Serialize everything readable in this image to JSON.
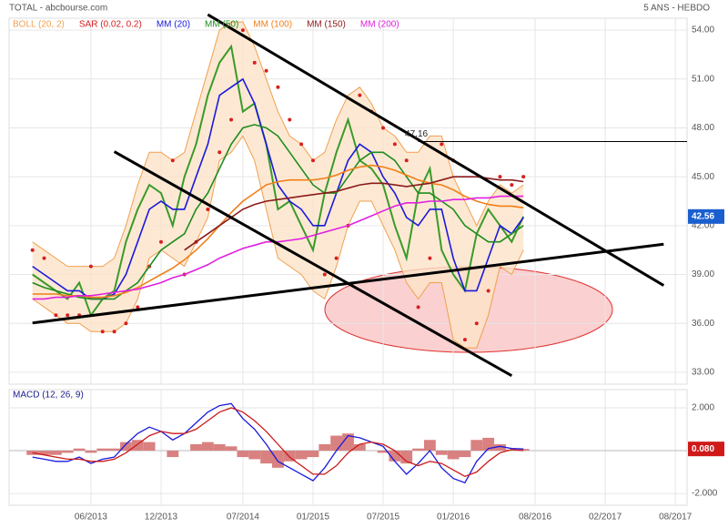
{
  "chart_data": [
    {
      "type": "line",
      "title": "TOTAL - abcbourse.com",
      "subtitle": "5 ANS - HEBDO",
      "x": [
        "2013-01",
        "2013-02",
        "2013-03",
        "2013-04",
        "2013-05",
        "2013-06",
        "2013-07",
        "2013-08",
        "2013-09",
        "2013-10",
        "2013-11",
        "2013-12",
        "2014-01",
        "2014-02",
        "2014-03",
        "2014-04",
        "2014-05",
        "2014-06",
        "2014-07",
        "2014-08",
        "2014-09",
        "2014-10",
        "2014-11",
        "2014-12",
        "2015-01",
        "2015-02",
        "2015-03",
        "2015-04",
        "2015-05",
        "2015-06",
        "2015-07",
        "2015-08",
        "2015-09",
        "2015-10",
        "2015-11",
        "2015-12",
        "2016-01",
        "2016-02",
        "2016-03",
        "2016-04",
        "2016-05",
        "2016-06",
        "2016-07"
      ],
      "close": {
        "color": "#3a9a2a",
        "values": [
          39.0,
          38.5,
          38.0,
          37.5,
          38.5,
          36.5,
          37.5,
          38.0,
          41.0,
          43.0,
          44.5,
          44.0,
          42.0,
          45.0,
          47.0,
          50.0,
          52.0,
          53.0,
          49.0,
          49.5,
          47.0,
          43.0,
          43.5,
          42.0,
          40.5,
          44.0,
          46.5,
          48.5,
          46.0,
          45.5,
          44.5,
          42.0,
          40.0,
          44.0,
          45.5,
          40.5,
          39.0,
          38.0,
          41.5,
          43.0,
          42.0,
          41.0,
          42.56
        ]
      },
      "bollinger": {
        "name": "BOLL (20, 2)",
        "color": "#f0a050",
        "upper": [
          41,
          40.5,
          40,
          39.5,
          39.5,
          39.5,
          39.5,
          40,
          42,
          44.5,
          46.5,
          46.5,
          46,
          46.5,
          49,
          51.5,
          54,
          54.5,
          54.5,
          53,
          51,
          49,
          47.5,
          47,
          46,
          46.5,
          48.5,
          50,
          50.5,
          49.5,
          48,
          47.5,
          46.5,
          46.5,
          47.5,
          47.5,
          45,
          43.5,
          42,
          43.5,
          44.5,
          44,
          44.5
        ],
        "lower": [
          37.5,
          37,
          36.5,
          36,
          36,
          35.5,
          35.5,
          35.5,
          36,
          37.5,
          40,
          40.5,
          40,
          39.5,
          41,
          42.5,
          46,
          46.5,
          47.5,
          46,
          43,
          40,
          39.5,
          39,
          38,
          37.5,
          39.5,
          42,
          43.5,
          43.5,
          42,
          40.5,
          38.5,
          37.5,
          38.5,
          38.5,
          35,
          34.5,
          34.5,
          36.5,
          39.5,
          39,
          40.5
        ]
      },
      "series": [
        {
          "name": "SAR (0.02, 0.2)",
          "color": "#d62020",
          "style": "dots",
          "values": [
            40.5,
            40,
            36.5,
            36.5,
            36.5,
            39.5,
            35.5,
            35.5,
            36,
            37,
            39.5,
            41,
            46,
            39,
            41,
            43,
            46.5,
            48.5,
            54,
            52,
            51.5,
            50.5,
            48.5,
            47,
            46,
            39,
            40,
            42,
            50,
            49,
            48,
            47,
            46,
            37,
            40,
            47,
            46,
            35,
            36,
            38,
            45,
            44.5,
            45
          ]
        },
        {
          "name": "MM (20)",
          "color": "#1a1adc",
          "values": [
            39.5,
            39,
            38.5,
            38,
            38,
            37.5,
            37.5,
            37.8,
            39,
            41,
            43,
            43.5,
            43,
            43,
            45,
            47,
            50,
            50.5,
            51,
            49.5,
            47,
            44.5,
            43.5,
            43,
            42,
            42,
            44,
            46,
            47,
            46.5,
            45,
            44,
            42.5,
            42,
            43,
            43,
            40,
            38,
            38,
            40,
            42,
            41.5,
            42.5
          ]
        },
        {
          "name": "MM (50)",
          "color": "#1e8c1e",
          "values": [
            38.5,
            38.2,
            38,
            37.8,
            37.6,
            37.5,
            37.5,
            37.5,
            38,
            38.5,
            39.5,
            40.5,
            41,
            41.5,
            43,
            44,
            45.5,
            47,
            48,
            48.2,
            48,
            47.5,
            46.5,
            45.5,
            44.5,
            44,
            44,
            45,
            46,
            46.5,
            46.5,
            46,
            45,
            44,
            44,
            43.5,
            43,
            42,
            41.5,
            41,
            41,
            41.5,
            42
          ]
        },
        {
          "name": "MM (100)",
          "color": "#f07f1a",
          "values": [
            37.8,
            37.8,
            37.8,
            37.7,
            37.7,
            37.6,
            37.6,
            37.7,
            37.9,
            38.2,
            38.6,
            39,
            39.4,
            39.9,
            40.5,
            41.2,
            42,
            42.8,
            43.5,
            44,
            44.5,
            44.7,
            44.8,
            44.8,
            44.8,
            44.9,
            45.1,
            45.4,
            45.6,
            45.7,
            45.6,
            45.4,
            45.1,
            44.8,
            44.6,
            44.5,
            44.2,
            43.8,
            43.5,
            43.3,
            43.2,
            43.2,
            43.1
          ]
        },
        {
          "name": "MM (150)",
          "color": "#8b1a1a",
          "values": [
            null,
            null,
            null,
            null,
            null,
            null,
            null,
            null,
            null,
            null,
            null,
            null,
            null,
            40.5,
            41,
            41.5,
            42,
            42.5,
            43,
            43.3,
            43.5,
            43.6,
            43.7,
            43.8,
            43.9,
            44,
            44.1,
            44.3,
            44.5,
            44.6,
            44.6,
            44.5,
            44.4,
            44.5,
            44.6,
            44.8,
            45,
            45,
            45,
            44.9,
            44.8,
            44.8,
            44.7
          ]
        },
        {
          "name": "MM (200)",
          "color": "#e020e0",
          "values": [
            37.5,
            37.5,
            37.6,
            37.6,
            37.7,
            37.7,
            37.8,
            37.9,
            38,
            38.1,
            38.3,
            38.5,
            38.8,
            39,
            39.3,
            39.6,
            40,
            40.3,
            40.6,
            40.8,
            41,
            41,
            41.1,
            41.2,
            41.4,
            41.6,
            41.8,
            42,
            42.3,
            42.6,
            42.9,
            43.2,
            43.4,
            43.4,
            43.5,
            43.5,
            43.6,
            43.6,
            43.7,
            43.7,
            43.8,
            43.8,
            43.8
          ]
        }
      ],
      "xlim": [
        "2012-11",
        "2017-09"
      ],
      "xticks": [
        {
          "value": "2013-06",
          "label": "06/2013"
        },
        {
          "value": "2013-12",
          "label": "12/2013"
        },
        {
          "value": "2014-07",
          "label": "07/2014"
        },
        {
          "value": "2015-01",
          "label": "01/2015"
        },
        {
          "value": "2015-07",
          "label": "07/2015"
        },
        {
          "value": "2016-01",
          "label": "01/2016"
        },
        {
          "value": "2016-08",
          "label": "08/2016"
        },
        {
          "value": "2017-02",
          "label": "02/2017"
        },
        {
          "value": "2017-08",
          "label": "08/2017"
        }
      ],
      "ylim": [
        32.27,
        54.73
      ],
      "yticks": [
        {
          "value": 33,
          "label": "33.00"
        },
        {
          "value": 36,
          "label": "36.00"
        },
        {
          "value": 39,
          "label": "39.00"
        },
        {
          "value": 42,
          "label": "42.00"
        },
        {
          "value": 45,
          "label": "45.00"
        },
        {
          "value": 48,
          "label": "48.00"
        },
        {
          "value": 51,
          "label": "51.00"
        },
        {
          "value": 54,
          "label": "54.00"
        }
      ],
      "grid": true,
      "annotation": {
        "x": "2015-10",
        "value": 47.16
      },
      "trendlines": [
        {
          "x": [
            "2014-04",
            "2017-07"
          ],
          "y": [
            54.95,
            38.33
          ]
        },
        {
          "x": [
            "2013-08",
            "2016-06"
          ],
          "y": [
            46.54,
            32.79
          ]
        },
        {
          "x": [
            "2013-01",
            "2017-07"
          ],
          "y": [
            36.03,
            40.86
          ]
        }
      ]
    },
    {
      "type": "line",
      "title": "MACD (12, 26, 9)",
      "series": [
        {
          "color": "#1a1adc",
          "values": [
            -0.3,
            -0.4,
            -0.5,
            -0.5,
            -0.3,
            -0.6,
            -0.4,
            -0.3,
            0.3,
            0.8,
            1.1,
            0.9,
            0.5,
            0.8,
            1.3,
            1.8,
            2.1,
            2.2,
            1.5,
            1.0,
            0.3,
            -0.5,
            -0.8,
            -1.1,
            -1.4,
            -0.8,
            0,
            0.7,
            0.6,
            0.4,
            0.2,
            -0.5,
            -1.1,
            -0.6,
            0,
            -0.8,
            -1.3,
            -1.5,
            -0.5,
            0.1,
            0.2,
            0.1,
            0.08
          ],
          "current_label": "0.080"
        },
        {
          "color": "#cc1a1a",
          "values": [
            -0.1,
            -0.2,
            -0.3,
            -0.4,
            -0.4,
            -0.5,
            -0.5,
            -0.4,
            -0.1,
            0.3,
            0.7,
            0.9,
            0.8,
            0.8,
            1.0,
            1.4,
            1.8,
            2.0,
            1.8,
            1.4,
            0.9,
            0.3,
            -0.3,
            -0.7,
            -1.1,
            -1.1,
            -0.7,
            -0.1,
            0.3,
            0.4,
            0.3,
            0,
            -0.5,
            -0.7,
            -0.5,
            -0.6,
            -0.9,
            -1.2,
            -1.0,
            -0.5,
            -0.1,
            0.05,
            0.0
          ]
        },
        {
          "color": "#d98080",
          "style": "bars",
          "values": [
            -0.2,
            -0.2,
            -0.2,
            -0.1,
            0.1,
            -0.1,
            0.1,
            0.1,
            0.4,
            0.5,
            0.4,
            0,
            -0.3,
            0,
            0.3,
            0.4,
            0.3,
            0.2,
            -0.3,
            -0.4,
            -0.6,
            -0.8,
            -0.5,
            -0.4,
            -0.3,
            0.3,
            0.7,
            0.8,
            0.3,
            0,
            -0.1,
            -0.5,
            -0.6,
            0.1,
            0.5,
            -0.2,
            -0.4,
            -0.3,
            0.5,
            0.6,
            0.3,
            0.05,
            0.08
          ]
        }
      ],
      "ylim": [
        -2.55,
        2.85
      ],
      "yticks": [
        {
          "value": 2,
          "label": "2.000"
        },
        {
          "value": -2,
          "label": "-2.000"
        }
      ]
    }
  ]
}
